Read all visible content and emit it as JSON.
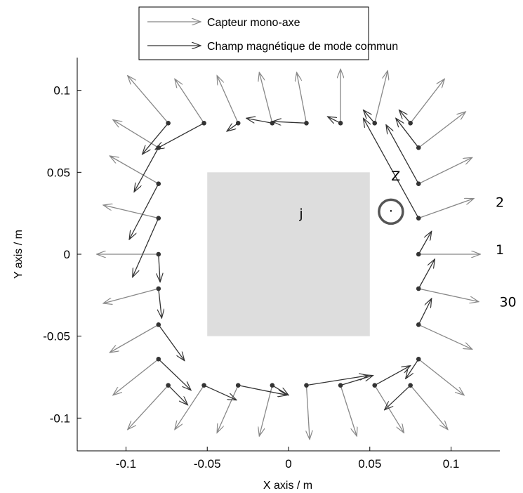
{
  "chart_data": {
    "type": "vector-field",
    "title": "",
    "xlabel": "X axis / m",
    "ylabel": "Y axis / m",
    "xlim": [
      -0.13,
      0.13
    ],
    "ylim": [
      -0.12,
      0.12
    ],
    "x_ticks": [
      -0.1,
      -0.05,
      0,
      0.05,
      0.1
    ],
    "x_tick_labels": [
      "-0.1",
      "-0.05",
      "0",
      "0.05",
      "0.1"
    ],
    "y_ticks": [
      -0.1,
      -0.05,
      0,
      0.05,
      0.1
    ],
    "y_tick_labels": [
      "-0.1",
      "-0.05",
      "0",
      "0.05",
      "0.1"
    ],
    "grid": false,
    "legend": {
      "placement": "top-center",
      "entries": [
        "Capteur mono-axe",
        "Champ magnétique de mode commun"
      ]
    },
    "colors": {
      "sensor_axis": "#888888",
      "common_mode_field": "#333333",
      "region": "#dddddd"
    },
    "region": {
      "x": [
        -0.05,
        0.05
      ],
      "y": [
        -0.05,
        0.05
      ],
      "label": "j"
    },
    "annotations": [
      {
        "text": "Z",
        "x": 0.066,
        "y": 0.045
      },
      {
        "text": ".",
        "x": 0.063,
        "y": 0.026
      },
      {
        "text": "2",
        "x": 0.13,
        "y": 0.029
      },
      {
        "text": "1",
        "x": 0.13,
        "y": 0.0
      },
      {
        "text": "30",
        "x": 0.135,
        "y": -0.032
      }
    ],
    "series": [
      {
        "name": "Capteur mono-axe",
        "vectors": [
          {
            "x": 0.08,
            "y": 0.0,
            "dx": 0.038,
            "dy": 0.0
          },
          {
            "x": 0.08,
            "y": 0.022,
            "dx": 0.034,
            "dy": 0.012
          },
          {
            "x": 0.08,
            "y": 0.043,
            "dx": 0.033,
            "dy": 0.016
          },
          {
            "x": 0.08,
            "y": 0.065,
            "dx": 0.029,
            "dy": 0.022
          },
          {
            "x": 0.075,
            "y": 0.08,
            "dx": 0.021,
            "dy": 0.027
          },
          {
            "x": 0.053,
            "y": 0.08,
            "dx": 0.008,
            "dy": 0.032
          },
          {
            "x": 0.032,
            "y": 0.08,
            "dx": 0.0,
            "dy": 0.033
          },
          {
            "x": 0.011,
            "y": 0.08,
            "dx": -0.006,
            "dy": 0.031
          },
          {
            "x": -0.01,
            "y": 0.08,
            "dx": -0.008,
            "dy": 0.031
          },
          {
            "x": -0.031,
            "y": 0.08,
            "dx": -0.013,
            "dy": 0.029
          },
          {
            "x": -0.052,
            "y": 0.08,
            "dx": -0.018,
            "dy": 0.027
          },
          {
            "x": -0.074,
            "y": 0.08,
            "dx": -0.025,
            "dy": 0.029
          },
          {
            "x": -0.08,
            "y": 0.065,
            "dx": -0.028,
            "dy": 0.017
          },
          {
            "x": -0.08,
            "y": 0.043,
            "dx": -0.03,
            "dy": 0.017
          },
          {
            "x": -0.08,
            "y": 0.022,
            "dx": -0.034,
            "dy": 0.008
          },
          {
            "x": -0.08,
            "y": 0.0,
            "dx": -0.038,
            "dy": 0.0
          },
          {
            "x": -0.08,
            "y": -0.021,
            "dx": -0.034,
            "dy": -0.009
          },
          {
            "x": -0.08,
            "y": -0.043,
            "dx": -0.03,
            "dy": -0.017
          },
          {
            "x": -0.08,
            "y": -0.064,
            "dx": -0.028,
            "dy": -0.022
          },
          {
            "x": -0.074,
            "y": -0.08,
            "dx": -0.025,
            "dy": -0.027
          },
          {
            "x": -0.052,
            "y": -0.08,
            "dx": -0.018,
            "dy": -0.027
          },
          {
            "x": -0.031,
            "y": -0.08,
            "dx": -0.013,
            "dy": -0.029
          },
          {
            "x": -0.01,
            "y": -0.08,
            "dx": -0.008,
            "dy": -0.031
          },
          {
            "x": 0.011,
            "y": -0.08,
            "dx": 0.002,
            "dy": -0.033
          },
          {
            "x": 0.032,
            "y": -0.08,
            "dx": 0.01,
            "dy": -0.031
          },
          {
            "x": 0.053,
            "y": -0.08,
            "dx": 0.018,
            "dy": -0.029
          },
          {
            "x": 0.075,
            "y": -0.08,
            "dx": 0.023,
            "dy": -0.027
          },
          {
            "x": 0.08,
            "y": -0.064,
            "dx": 0.028,
            "dy": -0.022
          },
          {
            "x": 0.08,
            "y": -0.043,
            "dx": 0.033,
            "dy": -0.015
          },
          {
            "x": 0.08,
            "y": -0.021,
            "dx": 0.037,
            "dy": -0.008
          }
        ]
      },
      {
        "name": "Champ magnétique de mode commun",
        "vectors": [
          {
            "x": 0.08,
            "y": 0.0,
            "dx": 0.008,
            "dy": 0.014
          },
          {
            "x": 0.08,
            "y": -0.021,
            "dx": 0.01,
            "dy": 0.018
          },
          {
            "x": 0.08,
            "y": -0.043,
            "dx": 0.008,
            "dy": 0.016
          },
          {
            "x": 0.08,
            "y": -0.064,
            "dx": -0.008,
            "dy": -0.012
          },
          {
            "x": 0.075,
            "y": -0.08,
            "dx": -0.016,
            "dy": -0.015
          },
          {
            "x": 0.053,
            "y": -0.08,
            "dx": 0.022,
            "dy": 0.012
          },
          {
            "x": 0.032,
            "y": -0.08,
            "dx": 0.02,
            "dy": 0.006
          },
          {
            "x": 0.011,
            "y": -0.08,
            "dx": 0.038,
            "dy": 0.006
          },
          {
            "x": -0.01,
            "y": -0.08,
            "dx": 0.01,
            "dy": -0.006
          },
          {
            "x": -0.031,
            "y": -0.08,
            "dx": 0.03,
            "dy": -0.006
          },
          {
            "x": -0.052,
            "y": -0.08,
            "dx": 0.02,
            "dy": -0.009
          },
          {
            "x": -0.074,
            "y": -0.08,
            "dx": 0.012,
            "dy": -0.012
          },
          {
            "x": -0.08,
            "y": -0.064,
            "dx": 0.02,
            "dy": -0.019
          },
          {
            "x": -0.08,
            "y": -0.043,
            "dx": 0.016,
            "dy": -0.022
          },
          {
            "x": -0.08,
            "y": -0.021,
            "dx": 0.002,
            "dy": -0.018
          },
          {
            "x": -0.08,
            "y": 0.0,
            "dx": 0.001,
            "dy": -0.017
          },
          {
            "x": -0.08,
            "y": 0.022,
            "dx": -0.016,
            "dy": -0.036
          },
          {
            "x": -0.08,
            "y": 0.043,
            "dx": -0.018,
            "dy": -0.034
          },
          {
            "x": -0.08,
            "y": 0.065,
            "dx": -0.015,
            "dy": -0.027
          },
          {
            "x": -0.074,
            "y": 0.08,
            "dx": -0.016,
            "dy": -0.019
          },
          {
            "x": -0.052,
            "y": 0.08,
            "dx": -0.03,
            "dy": -0.016
          },
          {
            "x": -0.031,
            "y": 0.08,
            "dx": -0.007,
            "dy": -0.005
          },
          {
            "x": -0.01,
            "y": 0.08,
            "dx": -0.016,
            "dy": 0.003
          },
          {
            "x": 0.011,
            "y": 0.08,
            "dx": -0.021,
            "dy": 0.001
          },
          {
            "x": 0.032,
            "y": 0.08,
            "dx": -0.008,
            "dy": 0.004
          },
          {
            "x": 0.053,
            "y": 0.08,
            "dx": -0.007,
            "dy": 0.008
          },
          {
            "x": 0.075,
            "y": 0.08,
            "dx": -0.007,
            "dy": 0.008
          },
          {
            "x": 0.08,
            "y": 0.065,
            "dx": -0.014,
            "dy": 0.018
          },
          {
            "x": 0.08,
            "y": 0.043,
            "dx": -0.02,
            "dy": 0.036
          },
          {
            "x": 0.08,
            "y": 0.022,
            "dx": -0.034,
            "dy": 0.061
          }
        ]
      }
    ]
  }
}
